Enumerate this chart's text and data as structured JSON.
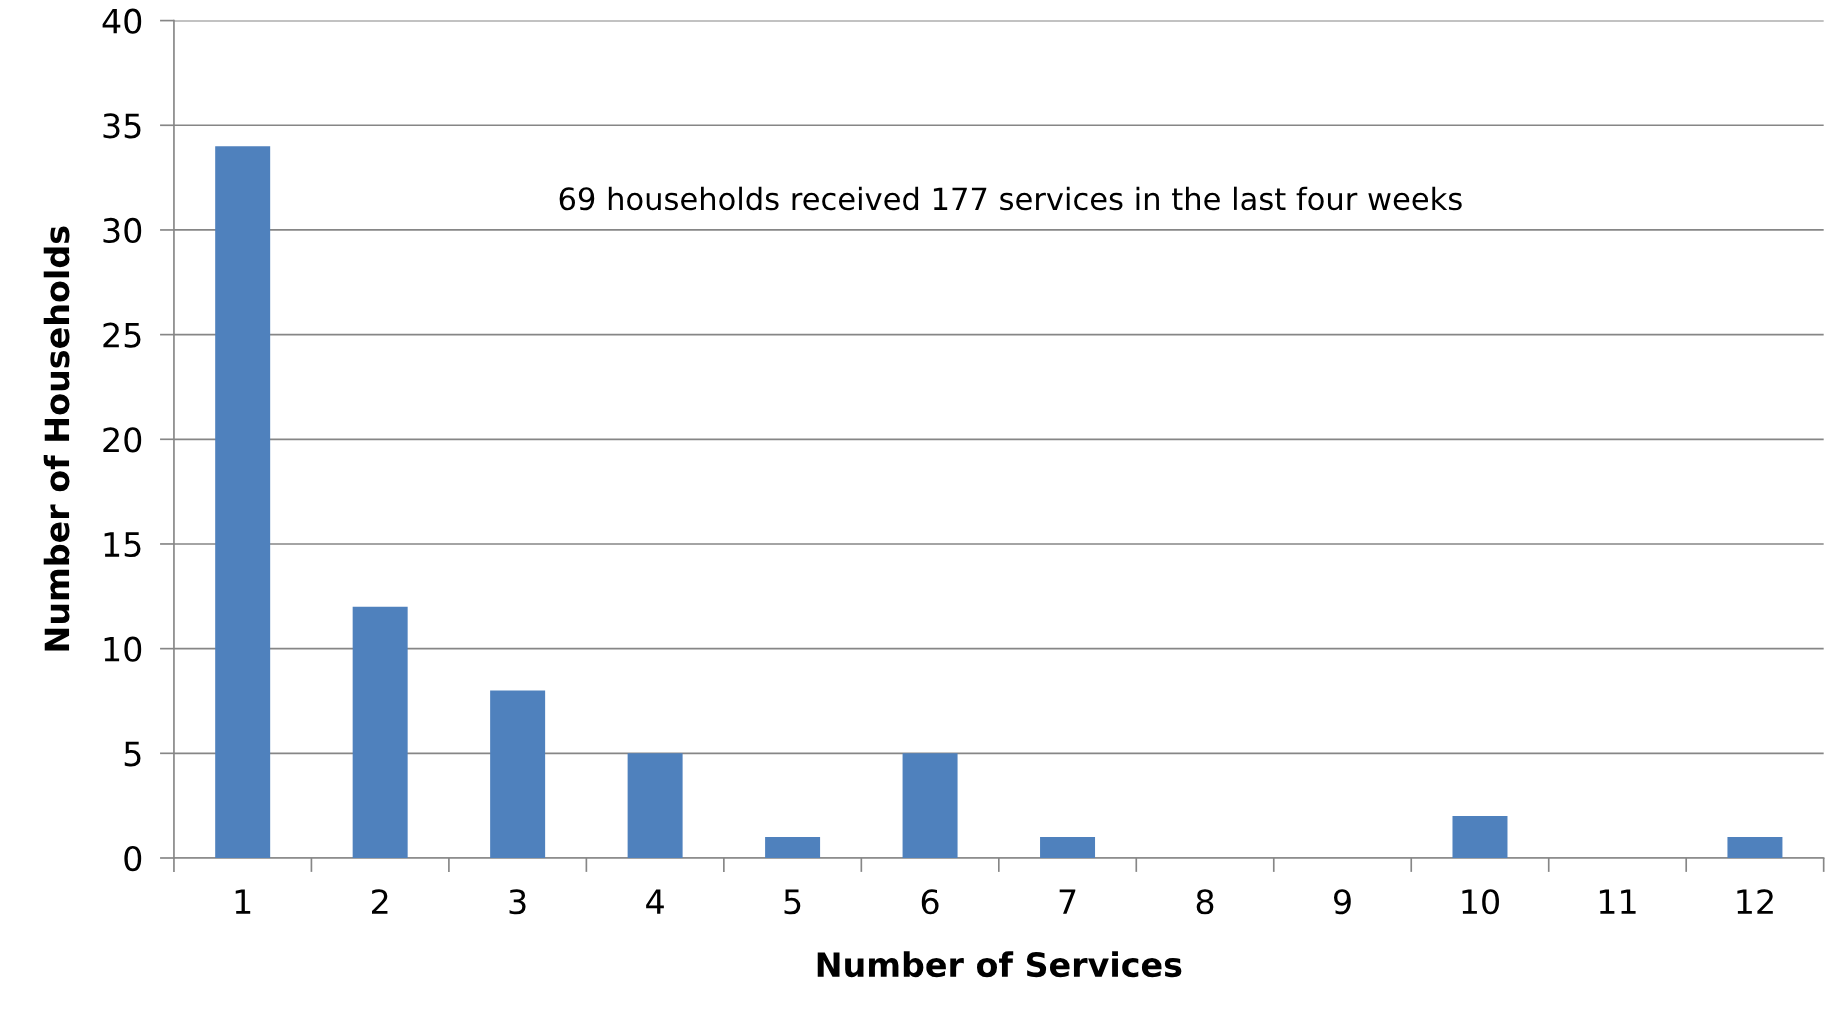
{
  "chart_data": {
    "type": "bar",
    "xlabel": "Number of Services",
    "ylabel": "Number of Households",
    "categories": [
      "1",
      "2",
      "3",
      "4",
      "5",
      "6",
      "7",
      "8",
      "9",
      "10",
      "11",
      "12"
    ],
    "values": [
      34,
      12,
      8,
      5,
      1,
      5,
      1,
      0,
      0,
      2,
      0,
      1
    ],
    "color": "#4f81bd",
    "ylim": [
      0,
      40
    ],
    "yticks": [
      0,
      5,
      10,
      15,
      20,
      25,
      30,
      35,
      40
    ],
    "grid": "y",
    "legend": false,
    "annotations": [
      "69 households received 177 services in the last four weeks"
    ]
  }
}
